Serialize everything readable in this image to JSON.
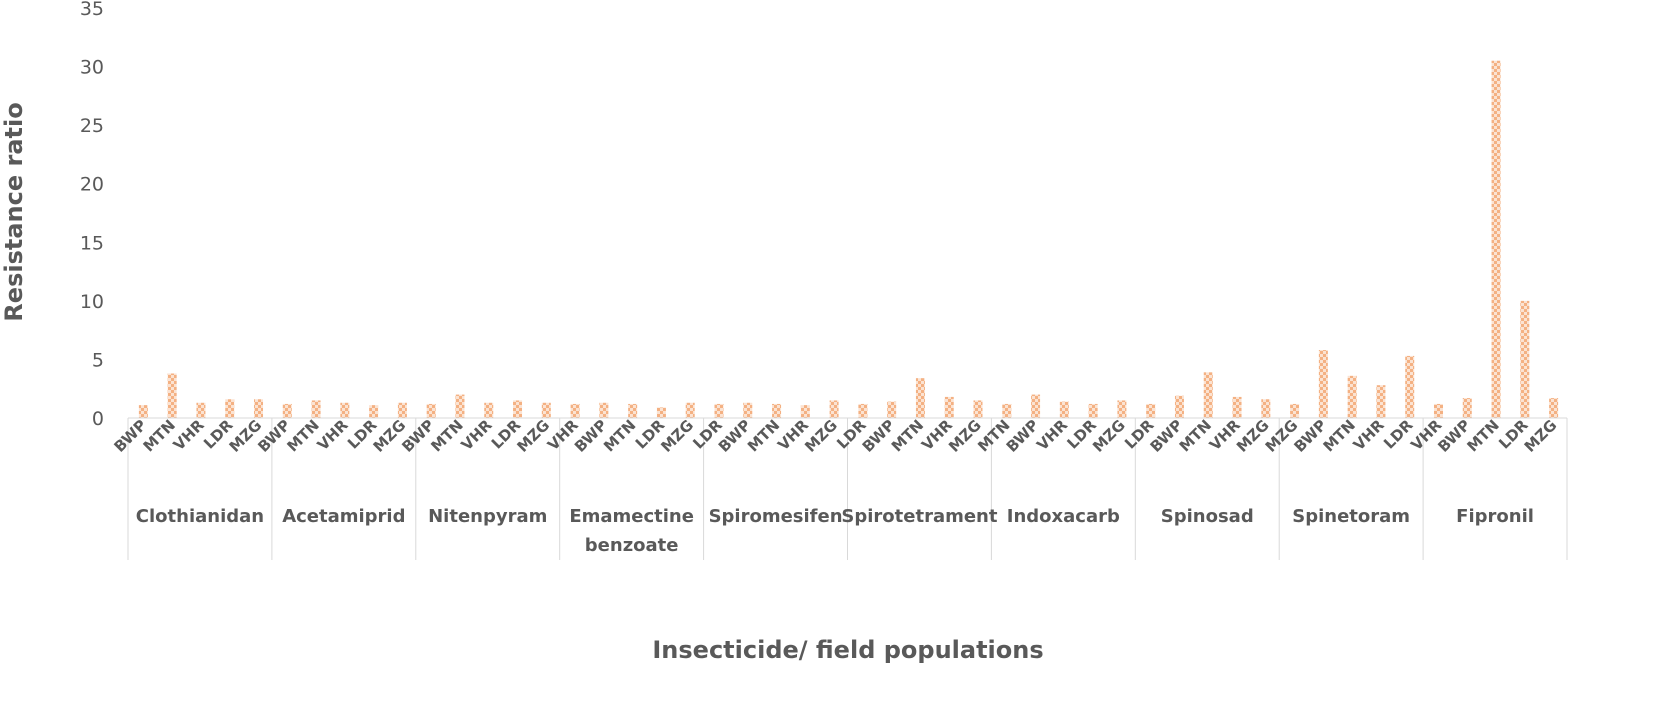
{
  "chart_data": {
    "type": "bar",
    "title": "",
    "xlabel": "Insecticide/ field populations",
    "ylabel": "Resistance ratio",
    "ylim": [
      0,
      35
    ],
    "yticks": [
      0,
      5,
      10,
      15,
      20,
      25,
      30,
      35
    ],
    "grid": false,
    "legend": "none",
    "bar_color": "#F4B183",
    "axis_color": "#D9D9D9",
    "text_color": "#595959",
    "groups": [
      {
        "label": "Clothianidan",
        "label_lines": [
          "Clothianidan"
        ],
        "populations": [
          "BWP",
          "MTN",
          "VHR",
          "LDR",
          "MZG"
        ],
        "values": [
          1.1,
          3.8,
          1.3,
          1.6,
          1.6
        ]
      },
      {
        "label": "Acetamiprid",
        "label_lines": [
          "Acetamiprid"
        ],
        "populations": [
          "BWP",
          "MTN",
          "VHR",
          "LDR",
          "MZG"
        ],
        "values": [
          1.2,
          1.5,
          1.3,
          1.1,
          1.3
        ]
      },
      {
        "label": "Nitenpyram",
        "label_lines": [
          "Nitenpyram"
        ],
        "populations": [
          "BWP",
          "MTN",
          "VHR",
          "LDR",
          "MZG"
        ],
        "values": [
          1.2,
          2.0,
          1.3,
          1.5,
          1.3
        ]
      },
      {
        "label": "Emamectine benzoate",
        "label_lines": [
          "Emamectine",
          "benzoate"
        ],
        "populations": [
          "VHR",
          "BWP",
          "MTN",
          "LDR",
          "MZG"
        ],
        "values": [
          1.2,
          1.3,
          1.2,
          0.9,
          1.3
        ]
      },
      {
        "label": "Spiromesifen",
        "label_lines": [
          "Spiromesifen"
        ],
        "populations": [
          "LDR",
          "BWP",
          "MTN",
          "VHR",
          "MZG"
        ],
        "values": [
          1.2,
          1.3,
          1.2,
          1.1,
          1.5
        ]
      },
      {
        "label": "Spirotetrament",
        "label_lines": [
          "Spirotetrament"
        ],
        "populations": [
          "LDR",
          "BWP",
          "MTN",
          "VHR",
          "MZG"
        ],
        "values": [
          1.2,
          1.4,
          3.4,
          1.8,
          1.5
        ]
      },
      {
        "label": "Indoxacarb",
        "label_lines": [
          "Indoxacarb"
        ],
        "populations": [
          "MTN",
          "BWP",
          "VHR",
          "LDR",
          "MZG"
        ],
        "values": [
          1.2,
          2.0,
          1.4,
          1.2,
          1.5
        ]
      },
      {
        "label": "Spinosad",
        "label_lines": [
          "Spinosad"
        ],
        "populations": [
          "LDR",
          "BWP",
          "MTN",
          "VHR",
          "MZG"
        ],
        "values": [
          1.2,
          1.9,
          3.9,
          1.8,
          1.6
        ]
      },
      {
        "label": "Spinetoram",
        "label_lines": [
          "Spinetoram"
        ],
        "populations": [
          "MZG",
          "BWP",
          "MTN",
          "VHR",
          "LDR"
        ],
        "values": [
          1.2,
          5.8,
          3.6,
          2.8,
          5.3
        ]
      },
      {
        "label": "Fipronil",
        "label_lines": [
          "Fipronil"
        ],
        "populations": [
          "VHR",
          "BWP",
          "MTN",
          "LDR",
          "MZG"
        ],
        "values": [
          1.2,
          1.7,
          30.5,
          10.0,
          1.7
        ]
      }
    ]
  }
}
